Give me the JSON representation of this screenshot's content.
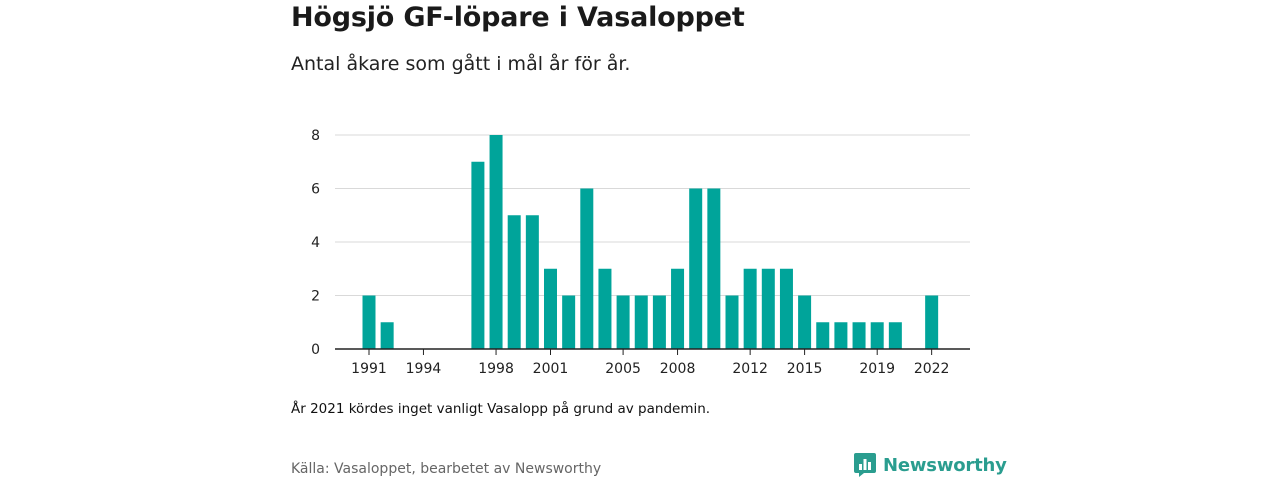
{
  "header": {
    "title": "Högsjö GF-löpare i Vasaloppet",
    "subtitle": "Antal åkare som gått i mål år för år."
  },
  "note": "År 2021 kördes inget vanligt Vasalopp på grund av pandemin.",
  "source": "Källa: Vasaloppet, bearbetet av Newsworthy",
  "brand": {
    "name": "Newsworthy",
    "icon": "newsworthy-chart-icon",
    "color": "#2a9d8f"
  },
  "colors": {
    "bar": "#00a49a",
    "grid": "#d9d9d9",
    "axis": "#222222"
  },
  "chart_data": {
    "type": "bar",
    "x": [
      1991,
      1992,
      1993,
      1994,
      1995,
      1996,
      1997,
      1998,
      1999,
      2000,
      2001,
      2002,
      2003,
      2004,
      2005,
      2006,
      2007,
      2008,
      2009,
      2010,
      2011,
      2012,
      2013,
      2014,
      2015,
      2016,
      2017,
      2018,
      2019,
      2020,
      2021,
      2022
    ],
    "values": [
      2,
      1,
      0,
      0,
      0,
      0,
      7,
      8,
      5,
      5,
      3,
      2,
      6,
      3,
      2,
      2,
      2,
      3,
      6,
      6,
      2,
      3,
      3,
      3,
      2,
      1,
      1,
      1,
      1,
      1,
      0,
      2
    ],
    "x_tick_labels": [
      1991,
      1994,
      1998,
      2001,
      2005,
      2008,
      2012,
      2015,
      2019,
      2022
    ],
    "y_ticks": [
      0,
      2,
      4,
      6,
      8
    ],
    "ylim": [
      0,
      8
    ],
    "grid": true,
    "legend": "none"
  }
}
